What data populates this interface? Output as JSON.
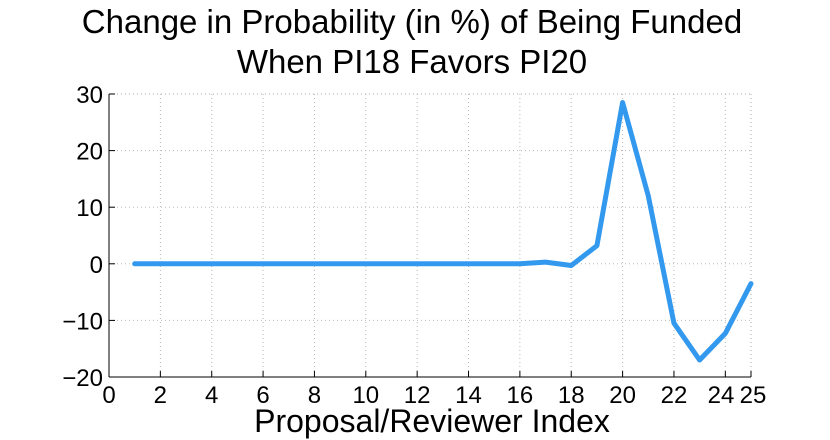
{
  "chart_data": {
    "type": "line",
    "title_lines": [
      "Change in Probability (in %) of Being Funded",
      "When PI18 Favors PI20"
    ],
    "xlabel": "Proposal/Reviewer Index",
    "ylabel": "",
    "xlim": [
      0,
      25
    ],
    "ylim": [
      -20,
      30
    ],
    "xticks": [
      0,
      2,
      4,
      6,
      8,
      10,
      12,
      14,
      16,
      18,
      20,
      22,
      24,
      25
    ],
    "yticks": [
      -20,
      -10,
      0,
      10,
      20,
      30
    ],
    "x_tick_labels": [
      "0",
      "2",
      "4",
      "6",
      "8",
      "10",
      "12",
      "14",
      "16",
      "18",
      "20",
      "22",
      "24",
      "25"
    ],
    "y_tick_labels": [
      "−20",
      "−10",
      "0",
      "10",
      "20",
      "30"
    ],
    "grid": true,
    "line_color": "#3399ee",
    "series": [
      {
        "x": [
          1,
          2,
          3,
          4,
          5,
          6,
          7,
          8,
          9,
          10,
          11,
          12,
          13,
          14,
          15,
          16,
          17,
          18,
          19,
          20,
          21,
          22,
          23,
          24,
          25
        ],
        "y": [
          0,
          0,
          0,
          0,
          0,
          0,
          0,
          0,
          0,
          0,
          0,
          0,
          0,
          0,
          0,
          0,
          0.3,
          -0.3,
          3.2,
          28.5,
          12,
          -10.5,
          -17,
          -12.3,
          -3.5
        ]
      }
    ]
  }
}
